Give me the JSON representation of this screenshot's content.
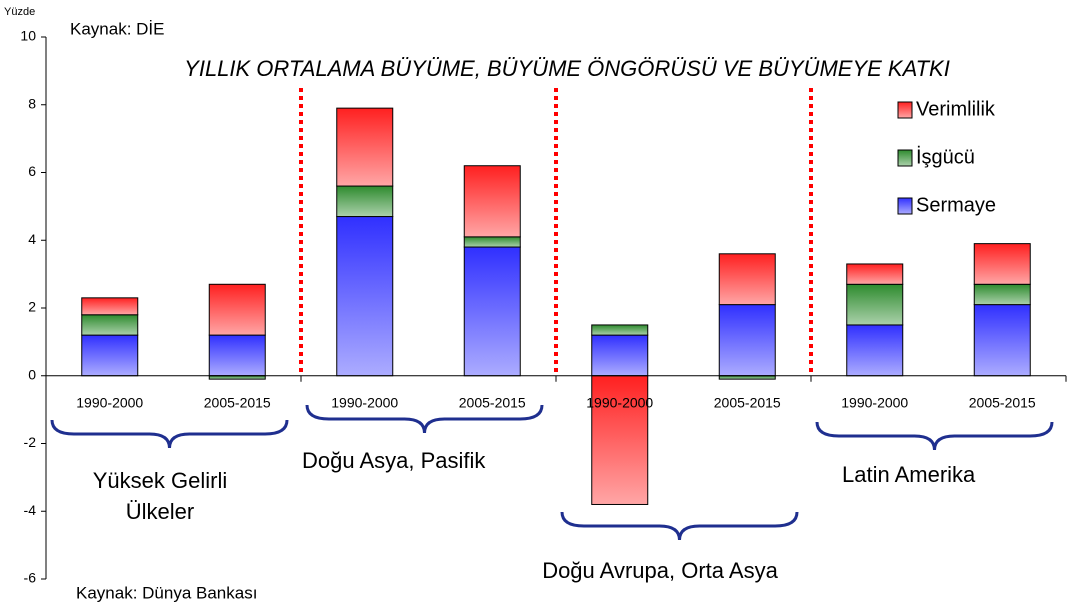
{
  "chart_data": {
    "type": "stacked_bar",
    "title": "YILLIK ORTALAMA BÜYÜME, BÜYÜME ÖNGÖRÜSÜ VE BÜYÜMEYE KATKI",
    "y_unit": "Yüzde",
    "source_top": "Kaynak: DİE",
    "source_bottom": "Kaynak: Dünya Bankası",
    "categories": [
      "1990-2000",
      "2005-2015",
      "1990-2000",
      "2005-2015",
      "1990-2000",
      "2005-2015",
      "1990-2000",
      "2005-2015"
    ],
    "groups": [
      [
        "Yüksek Gelirli",
        "Ülkeler"
      ],
      [
        "Doğu Asya, Pasifik"
      ],
      [
        "Doğu Avrupa, Orta Asya"
      ],
      [
        "Latin Amerika"
      ]
    ],
    "series": [
      {
        "name": "Sermaye",
        "color": "#3030ff",
        "values": [
          1.2,
          1.2,
          4.7,
          3.8,
          1.2,
          2.1,
          1.5,
          2.1
        ]
      },
      {
        "name": "İşgücü",
        "color": "#2e8b2e",
        "values": [
          0.6,
          -0.1,
          0.9,
          0.3,
          0.3,
          -0.1,
          1.2,
          0.6
        ]
      },
      {
        "name": "Verimlilik",
        "color": "#ff2020",
        "values": [
          0.5,
          1.5,
          2.3,
          2.1,
          -3.8,
          1.5,
          0.6,
          1.2
        ]
      }
    ],
    "ylim": [
      -6,
      10
    ],
    "yticks": [
      -6,
      -4,
      -2,
      0,
      2,
      4,
      6,
      8,
      10
    ],
    "divider_color": "#ff0000",
    "brace_color": "#1f2f8f"
  }
}
